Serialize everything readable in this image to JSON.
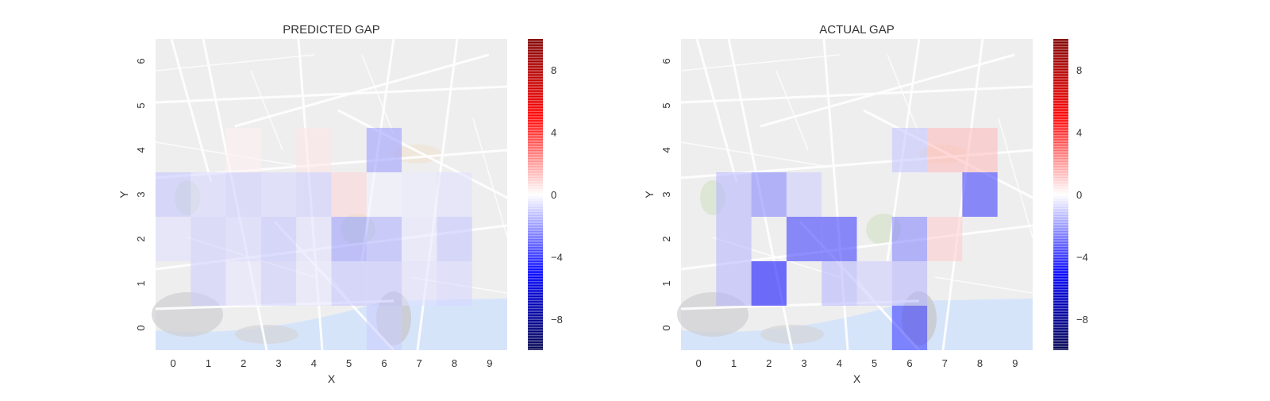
{
  "chart_data": [
    {
      "type": "heatmap",
      "title": "PREDICTED GAP",
      "xlabel": "X",
      "ylabel": "Y",
      "xticks": [
        "0",
        "1",
        "2",
        "3",
        "4",
        "5",
        "6",
        "7",
        "8",
        "9"
      ],
      "yticks": [
        "0",
        "1",
        "2",
        "3",
        "4",
        "5",
        "6"
      ],
      "colorbar": {
        "range": [
          -10,
          10
        ],
        "ticks": [
          "8",
          "4",
          "0",
          "−4",
          "−8"
        ],
        "tick_values": [
          8,
          4,
          0,
          -4,
          -8
        ],
        "colormap": "seismic"
      },
      "background": "street map",
      "grid": false,
      "cells": [
        {
          "x": 1,
          "y": 1,
          "v": -1
        },
        {
          "x": 2,
          "y": 1,
          "v": -0.5
        },
        {
          "x": 3,
          "y": 1,
          "v": -1
        },
        {
          "x": 4,
          "y": 1,
          "v": -0.5
        },
        {
          "x": 5,
          "y": 1,
          "v": -1.2
        },
        {
          "x": 6,
          "y": 1,
          "v": -1.2
        },
        {
          "x": 7,
          "y": 1,
          "v": -0.6
        },
        {
          "x": 8,
          "y": 1,
          "v": -0.8
        },
        {
          "x": 0,
          "y": 2,
          "v": -0.6
        },
        {
          "x": 1,
          "y": 2,
          "v": -1
        },
        {
          "x": 2,
          "y": 2,
          "v": -0.8
        },
        {
          "x": 3,
          "y": 2,
          "v": -1.2
        },
        {
          "x": 4,
          "y": 2,
          "v": -0.6
        },
        {
          "x": 5,
          "y": 2,
          "v": -2
        },
        {
          "x": 6,
          "y": 2,
          "v": -1.6
        },
        {
          "x": 7,
          "y": 2,
          "v": -0.5
        },
        {
          "x": 8,
          "y": 2,
          "v": -1.2
        },
        {
          "x": 0,
          "y": 3,
          "v": -1.2
        },
        {
          "x": 1,
          "y": 3,
          "v": -0.8
        },
        {
          "x": 2,
          "y": 3,
          "v": -1
        },
        {
          "x": 3,
          "y": 3,
          "v": -0.8
        },
        {
          "x": 4,
          "y": 3,
          "v": -1
        },
        {
          "x": 5,
          "y": 3,
          "v": 0.8
        },
        {
          "x": 6,
          "y": 3,
          "v": -0.3
        },
        {
          "x": 7,
          "y": 3,
          "v": -0.4
        },
        {
          "x": 8,
          "y": 3,
          "v": -0.6
        },
        {
          "x": 2,
          "y": 4,
          "v": 0.3
        },
        {
          "x": 4,
          "y": 4,
          "v": 0.5
        },
        {
          "x": 6,
          "y": 4,
          "v": -2
        },
        {
          "x": 6,
          "y": 0,
          "v": -1
        }
      ]
    },
    {
      "type": "heatmap",
      "title": "ACTUAL GAP",
      "xlabel": "X",
      "ylabel": "Y",
      "xticks": [
        "0",
        "1",
        "2",
        "3",
        "4",
        "5",
        "6",
        "7",
        "8",
        "9"
      ],
      "yticks": [
        "0",
        "1",
        "2",
        "3",
        "4",
        "5",
        "6"
      ],
      "colorbar": {
        "range": [
          -10,
          10
        ],
        "ticks": [
          "8",
          "4",
          "0",
          "−4",
          "−8"
        ],
        "tick_values": [
          8,
          4,
          0,
          -4,
          -8
        ],
        "colormap": "seismic"
      },
      "background": "street map",
      "grid": false,
      "cells": [
        {
          "x": 6,
          "y": 0,
          "v": -4
        },
        {
          "x": 1,
          "y": 1,
          "v": -1.5
        },
        {
          "x": 2,
          "y": 1,
          "v": -5
        },
        {
          "x": 4,
          "y": 1,
          "v": -1.5
        },
        {
          "x": 5,
          "y": 1,
          "v": -1
        },
        {
          "x": 6,
          "y": 1,
          "v": -1.5
        },
        {
          "x": 1,
          "y": 2,
          "v": -1.5
        },
        {
          "x": 3,
          "y": 2,
          "v": -4
        },
        {
          "x": 4,
          "y": 2,
          "v": -4
        },
        {
          "x": 6,
          "y": 2,
          "v": -2.5
        },
        {
          "x": 7,
          "y": 2,
          "v": 1
        },
        {
          "x": 1,
          "y": 3,
          "v": -1.5
        },
        {
          "x": 2,
          "y": 3,
          "v": -2.5
        },
        {
          "x": 3,
          "y": 3,
          "v": -1
        },
        {
          "x": 8,
          "y": 3,
          "v": -4
        },
        {
          "x": 6,
          "y": 4,
          "v": -1.2
        },
        {
          "x": 7,
          "y": 4,
          "v": 1.4
        },
        {
          "x": 8,
          "y": 4,
          "v": 1.4
        }
      ]
    }
  ]
}
